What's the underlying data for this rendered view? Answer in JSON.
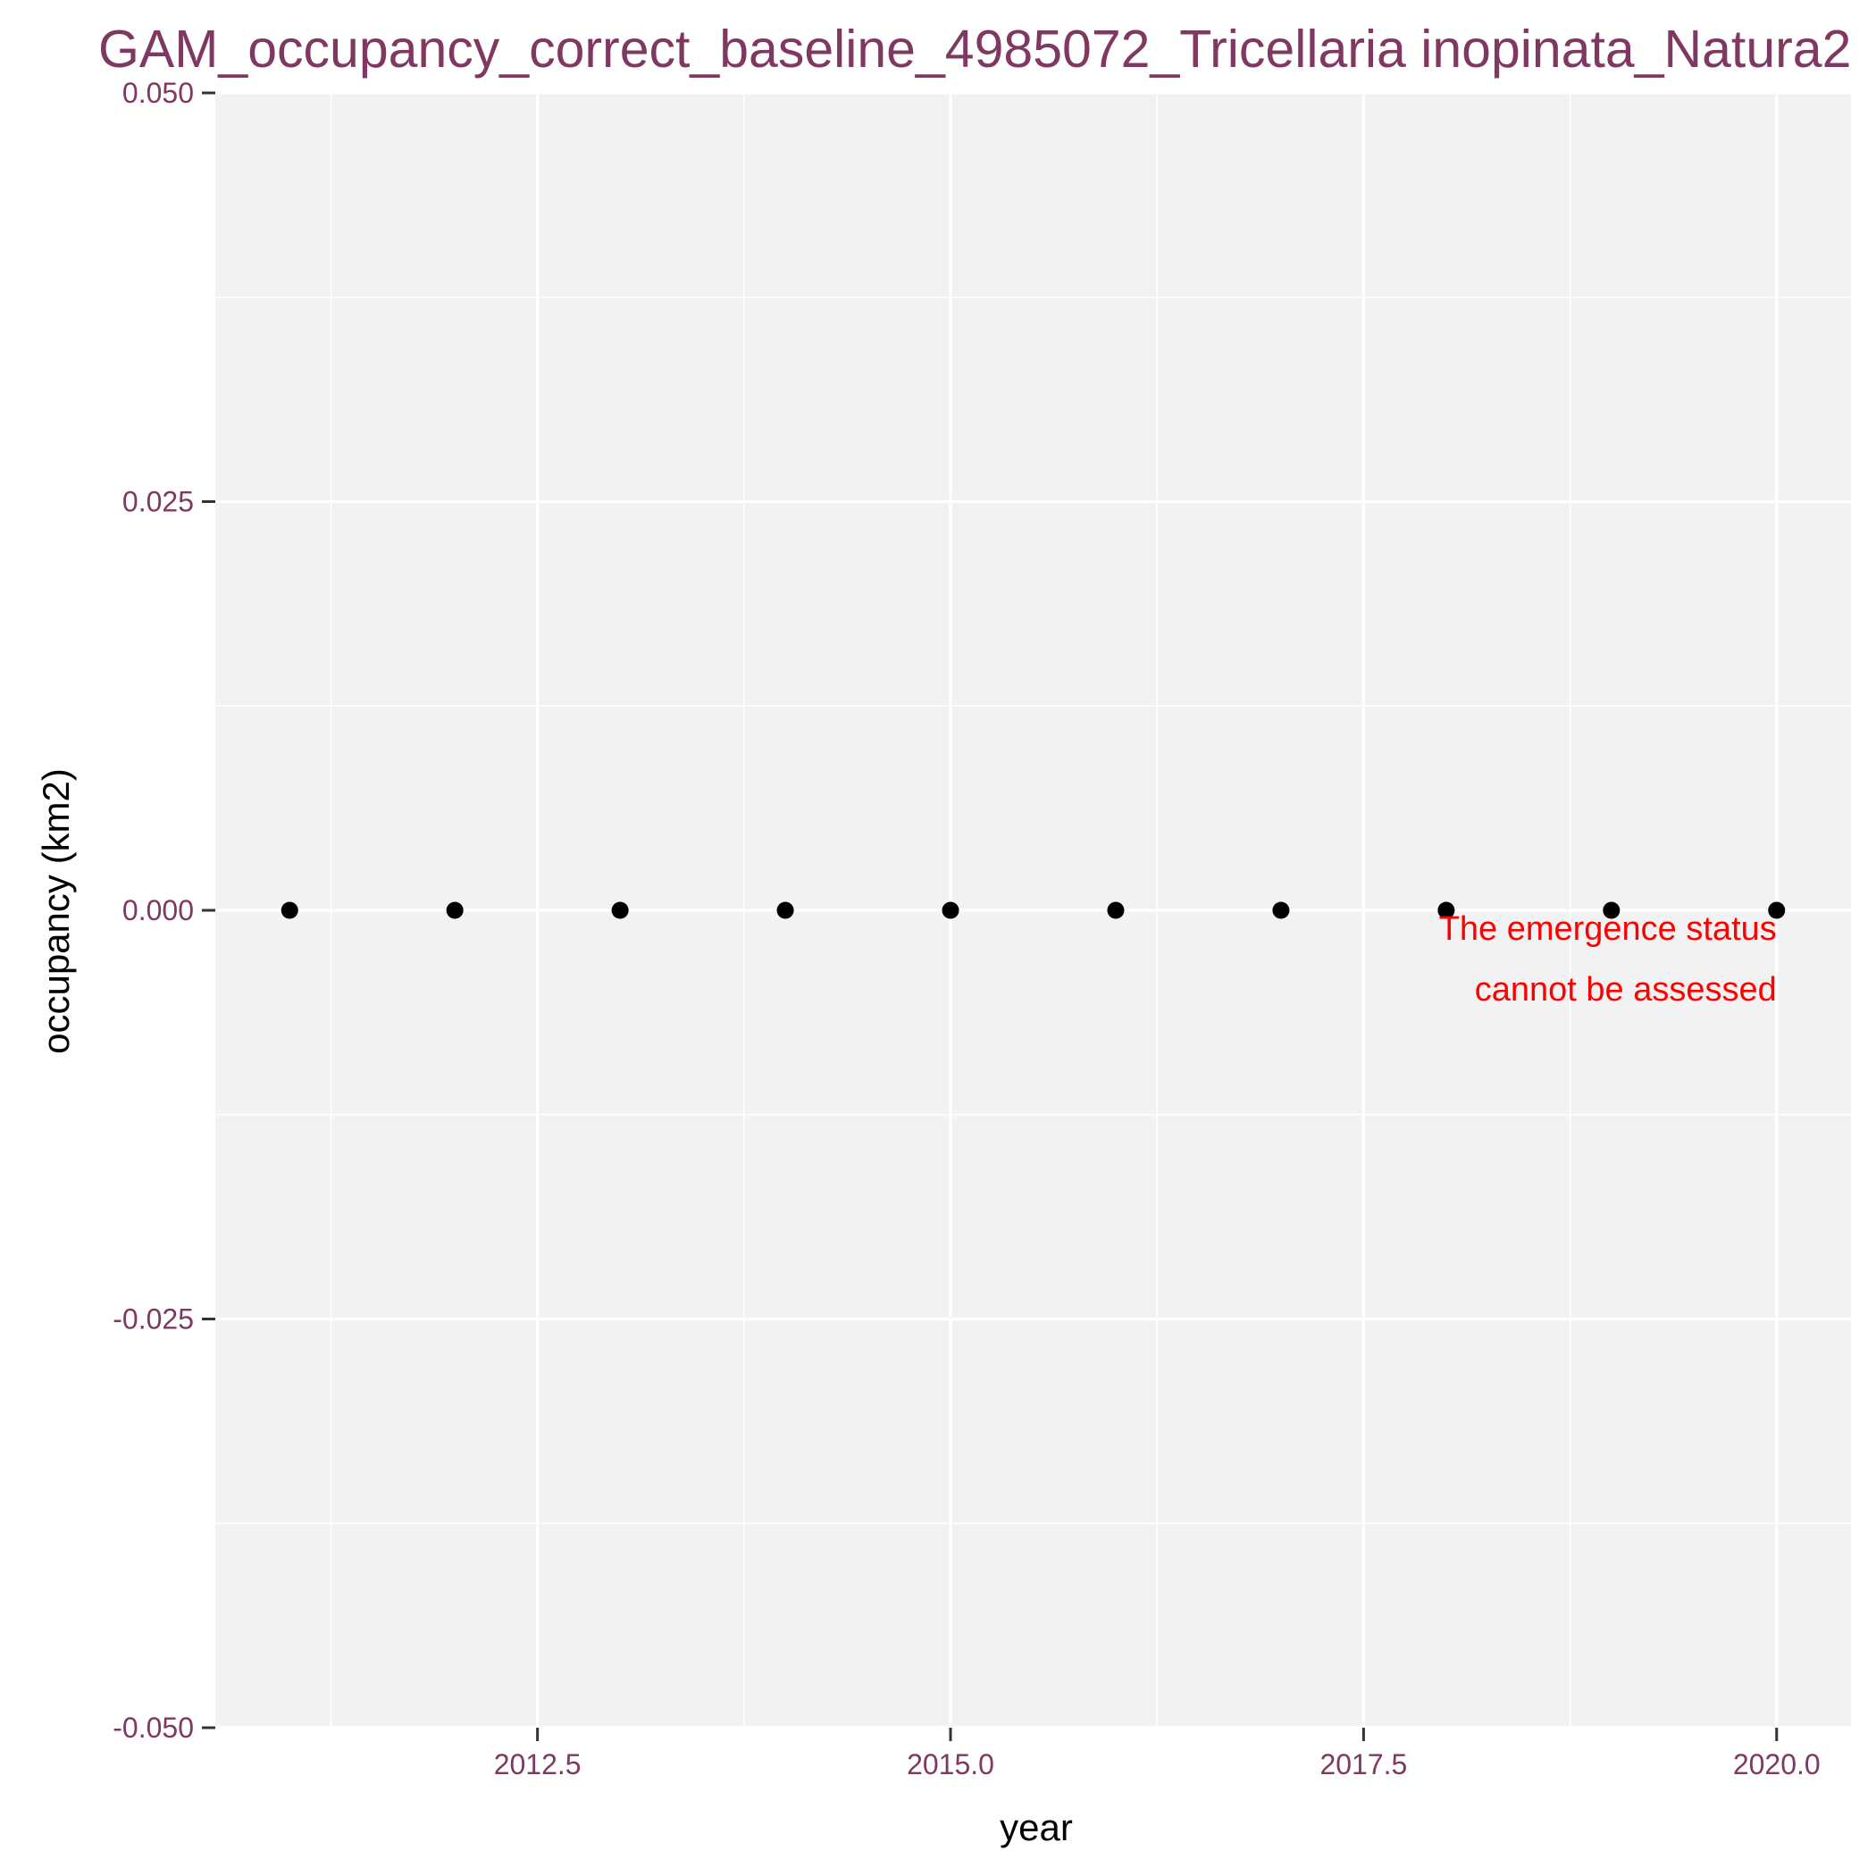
{
  "chart_data": {
    "type": "scatter",
    "title": "GAM_occupancy_correct_baseline_4985072_Tricellaria inopinata_Natura2",
    "xlabel": "year",
    "ylabel": "occupancy (km2)",
    "xlim": [
      2010.55,
      2020.45
    ],
    "ylim": [
      -0.05,
      0.05
    ],
    "x_ticks": [
      2012.5,
      2015.0,
      2017.5,
      2020.0
    ],
    "x_tick_labels": [
      "2012.5",
      "2015.0",
      "2017.5",
      "2020.0"
    ],
    "x_minor_breaks": [
      2011.25,
      2013.75,
      2016.25,
      2018.75
    ],
    "y_ticks": [
      -0.05,
      -0.025,
      0.0,
      0.025,
      0.05
    ],
    "y_tick_labels": [
      "-0.050",
      "-0.025",
      "0.000",
      "0.025",
      "0.050"
    ],
    "y_minor_breaks": [
      -0.0375,
      -0.0125,
      0.0125,
      0.0375
    ],
    "series": [
      {
        "x": [
          2011,
          2012,
          2013,
          2014,
          2015,
          2016,
          2017,
          2018,
          2019,
          2020
        ],
        "y": [
          0,
          0,
          0,
          0,
          0,
          0,
          0,
          0,
          0,
          0
        ]
      }
    ],
    "annotation": {
      "lines": [
        "The emergence status",
        "cannot be assessed"
      ],
      "x": 2020,
      "y": 0,
      "color": "#ff0000"
    },
    "grid": true,
    "legend": "none",
    "colors": {
      "panel": "#f2f2f2",
      "grid": "#ffffff",
      "points": "#000000",
      "title": "#7f3862",
      "ticks": "#7f3862",
      "annotation": "#ff0000"
    }
  }
}
